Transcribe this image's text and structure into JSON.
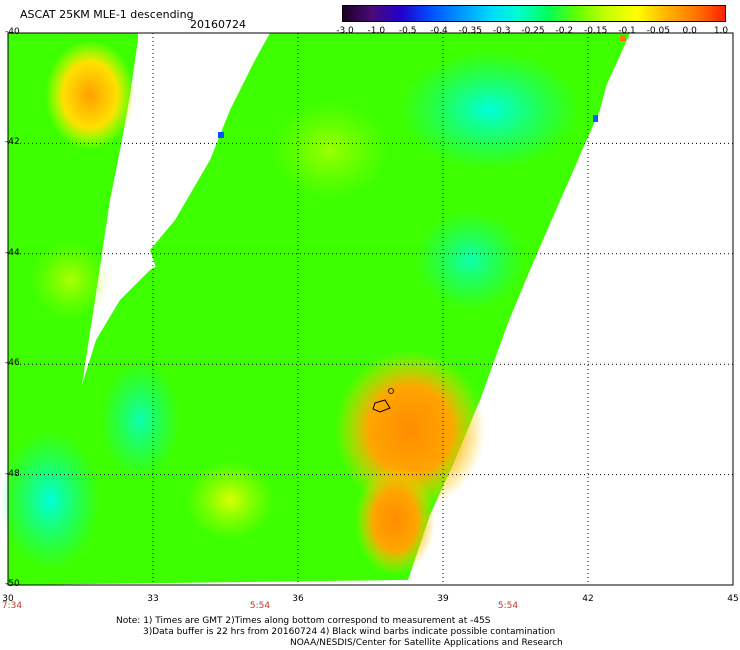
{
  "header": {
    "title": "ASCAT 25KM MLE-1 descending",
    "date": "20160724"
  },
  "colorbar": {
    "labels": [
      "-3.0",
      "-1.0",
      "-0.5",
      "-0.4",
      "-0.35",
      "-0.3",
      "-0.25",
      "-0.2",
      "-0.15",
      "-0.1",
      "-0.05",
      "0.0",
      "1.0"
    ],
    "colors": [
      "#1a0022",
      "#4b0a7a",
      "#2200cc",
      "#0050ff",
      "#0096ff",
      "#00d8ff",
      "#00ffcc",
      "#00ff55",
      "#66ff00",
      "#c8ff00",
      "#ffff00",
      "#ffb400",
      "#ff7700",
      "#ff2000"
    ]
  },
  "map": {
    "lat_labels": [
      "-40",
      "-42",
      "-44",
      "-46",
      "-48",
      "-50"
    ],
    "lon_labels": [
      "30",
      "33",
      "36",
      "39",
      "42",
      "45"
    ],
    "time_labels": [
      "7:34",
      "5:54",
      "5:54"
    ],
    "lon_range": [
      30,
      45
    ],
    "lat_range": [
      -50,
      -40
    ]
  },
  "notes": {
    "line1": "Note: 1) Times are GMT 2)Times along bottom correspond to measurement at -45S",
    "line2": "3)Data buffer is 22 hrs from 20160724 4) Black wind barbs indicate possible contamination",
    "line3": "NOAA/NESDIS/Center for Satellite Applications and Research"
  }
}
